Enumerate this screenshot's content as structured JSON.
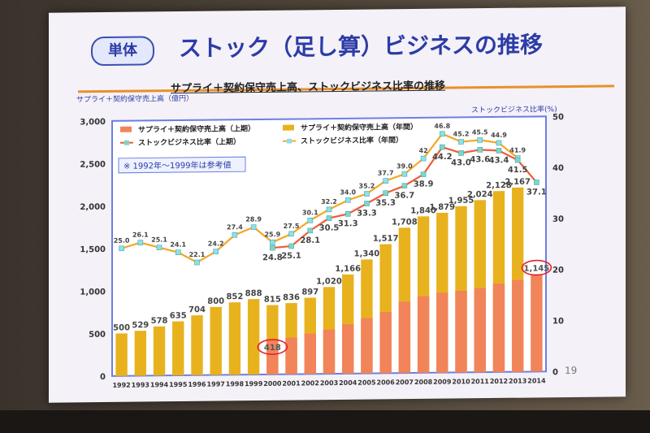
{
  "slide": {
    "badge": "単体",
    "title": "ストック（足し算）ビジネスの推移",
    "subtitle": "サプライ＋契約保守売上高、ストックビジネス比率の推移",
    "left_axis_title": "サプライ＋契約保守売上高（億円）",
    "right_axis_title": "ストックビジネス比率(%)",
    "note": "※ 1992年〜1999年は参考値",
    "page_number": "19"
  },
  "colors": {
    "bar_first_half": "#f2845a",
    "bar_full_year": "#e8b21e",
    "line_first_half": "#ef5a3a",
    "line_full_year": "#f5a623",
    "marker_first_half": "#7fd6c8",
    "marker_full_year": "#8ee0ea",
    "frame": "#6c7fe0",
    "highlight_circle": "#e0242a"
  },
  "chart_data": {
    "type": "bar",
    "categories": [
      "1992",
      "1993",
      "1994",
      "1995",
      "1996",
      "1997",
      "1998",
      "1999",
      "2000",
      "2001",
      "2002",
      "2003",
      "2004",
      "2005",
      "2006",
      "2007",
      "2008",
      "2009",
      "2010",
      "2011",
      "2012",
      "2013",
      "2014"
    ],
    "ylim": [
      0,
      3000
    ],
    "yticks": [
      "0",
      "500",
      "1,000",
      "1,500",
      "2,000",
      "2,500",
      "3,000"
    ],
    "y2lim": [
      0,
      50
    ],
    "y2ticks": [
      "0",
      "10",
      "20",
      "30",
      "40",
      "50"
    ],
    "legend_position": "top",
    "series": [
      {
        "name": "サプライ＋契約保守売上高（上期）",
        "type": "bar",
        "values": [
          null,
          null,
          null,
          null,
          null,
          null,
          null,
          null,
          418,
          430,
          475,
          520,
          580,
          650,
          720,
          840,
          900,
          940,
          960,
          990,
          1040,
          1080,
          1145
        ],
        "labels": [
          "",
          "",
          "",
          "",
          "",
          "",
          "",
          "",
          "418",
          "",
          "",
          "",
          "",
          "",
          "",
          "",
          "",
          "",
          "",
          "",
          "",
          "",
          "1,145"
        ]
      },
      {
        "name": "サプライ＋契約保守売上高（年間）",
        "type": "bar",
        "values": [
          500,
          529,
          578,
          635,
          704,
          800,
          852,
          888,
          815,
          836,
          897,
          1020,
          1166,
          1340,
          1517,
          1708,
          1840,
          1879,
          1955,
          2024,
          2128,
          2167,
          null
        ],
        "labels": [
          "500",
          "529",
          "578",
          "635",
          "704",
          "800",
          "852",
          "888",
          "815",
          "836",
          "897",
          "1,020",
          "1,166",
          "1,340",
          "1,517",
          "1,708",
          "1,840",
          "1,879",
          "1,955",
          "2,024",
          "2,128",
          "2,167",
          ""
        ]
      },
      {
        "name": "ストックビジネス比率（上期）",
        "type": "line",
        "axis": "right",
        "values": [
          null,
          null,
          null,
          null,
          null,
          null,
          null,
          null,
          24.8,
          25.1,
          28.1,
          30.5,
          31.3,
          33.3,
          35.3,
          36.7,
          38.9,
          44.2,
          43.0,
          43.6,
          43.4,
          41.5,
          37.1
        ],
        "labels": [
          "",
          "",
          "",
          "",
          "",
          "",
          "",
          "",
          "24.8",
          "25.1",
          "28.1",
          "30.5",
          "31.3",
          "33.3",
          "35.3",
          "36.7",
          "38.9",
          "44.2",
          "43.0",
          "43.6",
          "43.4",
          "41.5",
          "37.1"
        ]
      },
      {
        "name": "ストックビジネス比率（年間）",
        "type": "line",
        "axis": "right",
        "values": [
          25.0,
          26.1,
          25.1,
          24.1,
          22.1,
          24.2,
          27.4,
          28.9,
          25.9,
          27.5,
          30.1,
          32.2,
          34.0,
          35.2,
          37.7,
          39.0,
          42.0,
          46.8,
          45.2,
          45.5,
          44.9,
          41.9,
          null
        ],
        "labels": [
          "25.0",
          "26.1",
          "25.1",
          "24.1",
          "22.1",
          "24.2",
          "27.4",
          "28.9",
          "25.9",
          "27.5",
          "30.1",
          "32.2",
          "34.0",
          "35.2",
          "37.7",
          "39.0",
          "42",
          "46.8",
          "45.2",
          "45.5",
          "44.9",
          "41.9",
          ""
        ]
      }
    ],
    "highlighted_labels": [
      "418",
      "1,145"
    ]
  }
}
